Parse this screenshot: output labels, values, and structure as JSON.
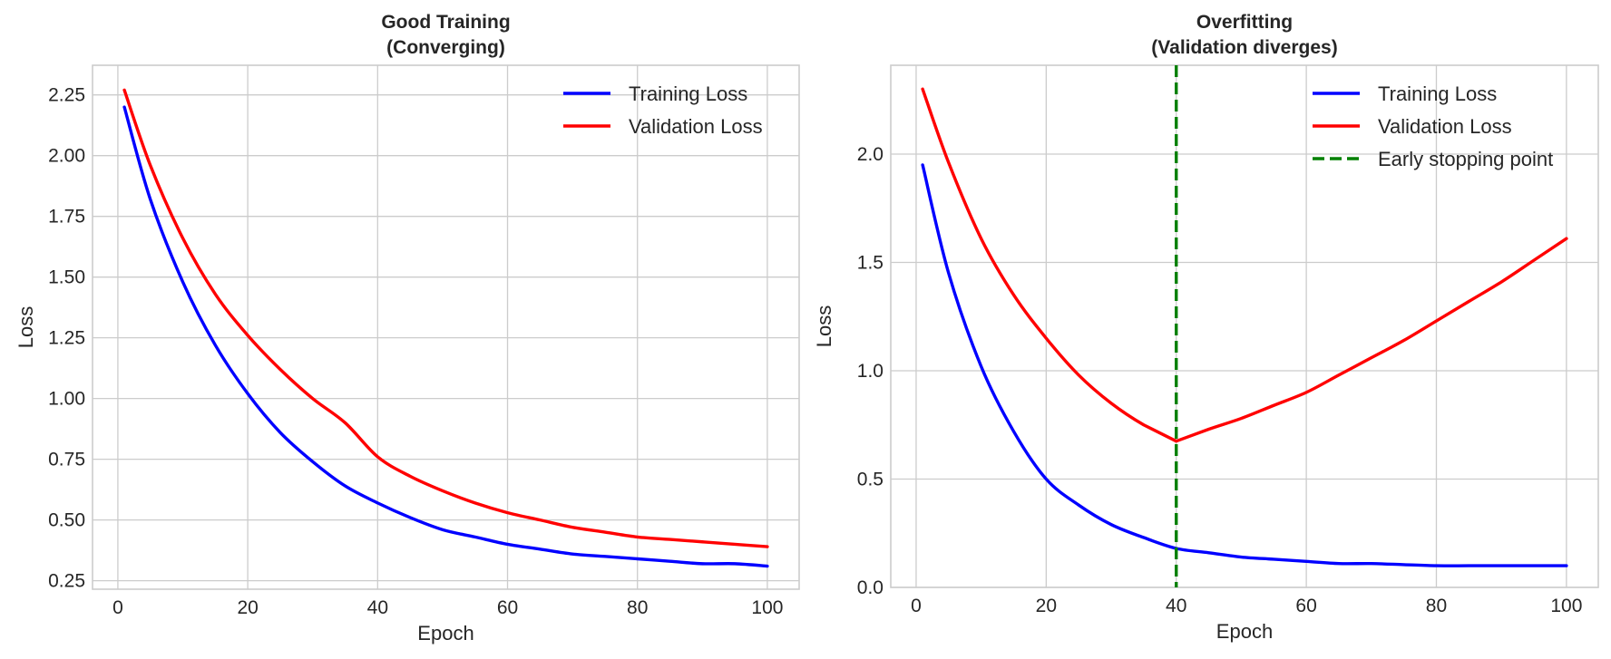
{
  "chart_data": [
    {
      "type": "line",
      "title": "Good Training\n(Converging)",
      "title_lines": [
        "Good Training",
        "(Converging)"
      ],
      "xlabel": "Epoch",
      "ylabel": "Loss",
      "xlim": [
        -3.9,
        104.9
      ],
      "ylim": [
        0.215,
        2.372
      ],
      "xticks": [
        0,
        20,
        40,
        60,
        80,
        100
      ],
      "xtick_labels": [
        "0",
        "20",
        "40",
        "60",
        "80",
        "100"
      ],
      "yticks": [
        0.25,
        0.5,
        0.75,
        1.0,
        1.25,
        1.5,
        1.75,
        2.0,
        2.25
      ],
      "ytick_labels": [
        "0.25",
        "0.50",
        "0.75",
        "1.00",
        "1.25",
        "1.50",
        "1.75",
        "2.00",
        "2.25"
      ],
      "grid": true,
      "legend_position": "top-right",
      "series": [
        {
          "name": "Training Loss",
          "color": "#0000ff",
          "style": "solid",
          "x": [
            1,
            5,
            10,
            15,
            20,
            25,
            30,
            35,
            40,
            45,
            50,
            55,
            60,
            65,
            70,
            75,
            80,
            85,
            90,
            95,
            100
          ],
          "y": [
            2.2,
            1.82,
            1.48,
            1.22,
            1.02,
            0.86,
            0.74,
            0.64,
            0.57,
            0.51,
            0.46,
            0.43,
            0.4,
            0.38,
            0.36,
            0.35,
            0.34,
            0.33,
            0.32,
            0.32,
            0.31
          ]
        },
        {
          "name": "Validation Loss",
          "color": "#ff0000",
          "style": "solid",
          "x": [
            1,
            5,
            10,
            15,
            20,
            25,
            30,
            35,
            40,
            45,
            50,
            55,
            60,
            65,
            70,
            75,
            80,
            85,
            90,
            95,
            100
          ],
          "y": [
            2.27,
            1.96,
            1.66,
            1.43,
            1.26,
            1.12,
            1.0,
            0.9,
            0.76,
            0.68,
            0.62,
            0.57,
            0.53,
            0.5,
            0.47,
            0.45,
            0.43,
            0.42,
            0.41,
            0.4,
            0.39
          ]
        }
      ]
    },
    {
      "type": "line",
      "title": "Overfitting\n(Validation diverges)",
      "title_lines": [
        "Overfitting",
        "(Validation diverges)"
      ],
      "xlabel": "Epoch",
      "ylabel": "Loss",
      "xlim": [
        -3.9,
        104.9
      ],
      "ylim": [
        0.0,
        2.41
      ],
      "xticks": [
        0,
        20,
        40,
        60,
        80,
        100
      ],
      "xtick_labels": [
        "0",
        "20",
        "40",
        "60",
        "80",
        "100"
      ],
      "yticks": [
        0.0,
        0.5,
        1.0,
        1.5,
        2.0
      ],
      "ytick_labels": [
        "0.0",
        "0.5",
        "1.0",
        "1.5",
        "2.0"
      ],
      "grid": true,
      "legend_position": "top-right",
      "series": [
        {
          "name": "Training Loss",
          "color": "#0000ff",
          "style": "solid",
          "x": [
            1,
            5,
            10,
            15,
            20,
            25,
            30,
            35,
            40,
            45,
            50,
            55,
            60,
            65,
            70,
            75,
            80,
            85,
            90,
            95,
            100
          ],
          "y": [
            1.95,
            1.45,
            1.02,
            0.72,
            0.5,
            0.38,
            0.29,
            0.23,
            0.18,
            0.16,
            0.14,
            0.13,
            0.12,
            0.11,
            0.11,
            0.105,
            0.1,
            0.1,
            0.1,
            0.1,
            0.1
          ]
        },
        {
          "name": "Validation Loss",
          "color": "#ff0000",
          "style": "solid",
          "x": [
            1,
            5,
            10,
            15,
            20,
            25,
            30,
            35,
            40,
            45,
            50,
            55,
            60,
            65,
            70,
            75,
            80,
            85,
            90,
            95,
            100
          ],
          "y": [
            2.3,
            1.96,
            1.61,
            1.35,
            1.15,
            0.98,
            0.85,
            0.75,
            0.675,
            0.73,
            0.78,
            0.84,
            0.9,
            0.98,
            1.06,
            1.14,
            1.23,
            1.32,
            1.41,
            1.51,
            1.61
          ]
        },
        {
          "name": "Early stopping point",
          "color": "#008000",
          "style": "dashed",
          "vline_x": 40
        }
      ]
    }
  ]
}
